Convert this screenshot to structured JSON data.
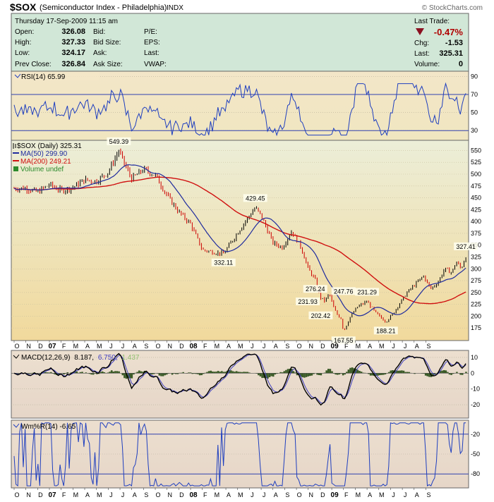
{
  "header": {
    "symbol": "$SOX",
    "name": "(Semiconductor Index - Philadelphia)",
    "exchange": "INDX",
    "watermark": "© StockCharts.com",
    "date": "Thursday  17-Sep-2009  11:15 am",
    "quote_labels": {
      "open": "Open:",
      "high": "High:",
      "low": "Low:",
      "prev": "Prev Close:",
      "bid": "Bid:",
      "bidsize": "Bid Size:",
      "ask": "Ask:",
      "asksize": "Ask Size:",
      "pe": "P/E:",
      "eps": "EPS:",
      "last": "Last:",
      "vwap": "VWAP:",
      "last_trade": "Last Trade:",
      "chg": "Chg:",
      "last2": "Last:",
      "volume": "Volume:"
    },
    "quote_values": {
      "open": "326.08",
      "high": "327.33",
      "low": "324.17",
      "prev": "326.84",
      "pct": "-0.47%",
      "chg": "-1.53",
      "last": "325.31",
      "volume": "0"
    }
  },
  "legends": {
    "rsi": "RSI(14) 65.99",
    "price": "$SOX (Daily) 325.31",
    "ma50": "MA(50) 299.90",
    "ma200": "MA(200) 249.21",
    "volume": "Volume undef",
    "macd_label": "MACD(12,26,9)",
    "macd_v1": "8.187,",
    "macd_v2": "6.750,",
    "macd_v3": "1.437",
    "wpr": "Wm%R(14) -6.65"
  },
  "colors": {
    "up": "#000000",
    "down": "#cc0000",
    "ma50": "#1f2b9e",
    "ma200": "#d01010",
    "rsi_line": "#1f3fbf",
    "macd_line": "#000000",
    "signal_line": "#4040c0",
    "histogram": "#3a5a26",
    "wpr_line": "#1f3fbf",
    "price_bg_top": "#eaedd5",
    "price_bg_bottom": "#f0dca0",
    "indicator_bg": "#e6dbd0",
    "quote_bg": "#cfe6d6"
  },
  "chart_data": {
    "type": "line",
    "x_axis_months": [
      "O",
      "N",
      "D",
      "07",
      "F",
      "M",
      "A",
      "M",
      "J",
      "J",
      "A",
      "S",
      "O",
      "N",
      "D",
      "08",
      "F",
      "M",
      "A",
      "M",
      "J",
      "J",
      "A",
      "S",
      "O",
      "N",
      "D",
      "09",
      "F",
      "M",
      "A",
      "M",
      "J",
      "J",
      "A",
      "S"
    ],
    "price": {
      "ylim": [
        150,
        570
      ],
      "ticks": [
        175,
        200,
        225,
        250,
        275,
        300,
        325,
        350,
        375,
        400,
        425,
        450,
        475,
        500,
        525,
        550
      ],
      "anchors": [
        {
          "month": 0.0,
          "value": 470
        },
        {
          "month": 1.0,
          "value": 470
        },
        {
          "month": 2.0,
          "value": 462
        },
        {
          "month": 3.0,
          "value": 478
        },
        {
          "month": 4.0,
          "value": 465
        },
        {
          "month": 5.0,
          "value": 472
        },
        {
          "month": 6.0,
          "value": 488
        },
        {
          "month": 7.0,
          "value": 485
        },
        {
          "month": 8.0,
          "value": 505
        },
        {
          "month": 8.9,
          "value": 549.39
        },
        {
          "month": 9.5,
          "value": 515
        },
        {
          "month": 10.0,
          "value": 490
        },
        {
          "month": 11.0,
          "value": 510
        },
        {
          "month": 12.0,
          "value": 498
        },
        {
          "month": 13.0,
          "value": 455
        },
        {
          "month": 14.0,
          "value": 420
        },
        {
          "month": 15.0,
          "value": 395
        },
        {
          "month": 16.0,
          "value": 340
        },
        {
          "month": 17.0,
          "value": 335
        },
        {
          "month": 17.8,
          "value": 332.11
        },
        {
          "month": 18.5,
          "value": 358
        },
        {
          "month": 19.5,
          "value": 395
        },
        {
          "month": 20.5,
          "value": 429.45
        },
        {
          "month": 21.0,
          "value": 412
        },
        {
          "month": 22.0,
          "value": 355
        },
        {
          "month": 22.8,
          "value": 345
        },
        {
          "month": 23.6,
          "value": 380
        },
        {
          "month": 24.4,
          "value": 345
        },
        {
          "month": 25.0,
          "value": 300
        },
        {
          "month": 25.6,
          "value": 276.24
        },
        {
          "month": 26.0,
          "value": 240
        },
        {
          "month": 26.4,
          "value": 231.93
        },
        {
          "month": 26.8,
          "value": 247.76
        },
        {
          "month": 27.2,
          "value": 215
        },
        {
          "month": 27.5,
          "value": 202.42
        },
        {
          "month": 27.8,
          "value": 195
        },
        {
          "month": 28.0,
          "value": 167.55
        },
        {
          "month": 28.6,
          "value": 200
        },
        {
          "month": 29.2,
          "value": 220
        },
        {
          "month": 30.0,
          "value": 231.29
        },
        {
          "month": 30.8,
          "value": 205
        },
        {
          "month": 31.6,
          "value": 188.21
        },
        {
          "month": 32.2,
          "value": 205
        },
        {
          "month": 32.8,
          "value": 228
        },
        {
          "month": 33.4,
          "value": 250
        },
        {
          "month": 34.0,
          "value": 265
        },
        {
          "month": 34.8,
          "value": 285
        },
        {
          "month": 35.4,
          "value": 258
        },
        {
          "month": 36.0,
          "value": 270
        },
        {
          "month": 36.6,
          "value": 300
        },
        {
          "month": 37.2,
          "value": 292
        },
        {
          "month": 37.6,
          "value": 315
        },
        {
          "month": 38.0,
          "value": 300
        },
        {
          "month": 38.4,
          "value": 327.41
        }
      ],
      "annotations": [
        {
          "label": "549.39",
          "month": 8.9,
          "value": 549.39,
          "pos": "above"
        },
        {
          "label": "332.11",
          "month": 17.8,
          "value": 332.11,
          "pos": "below"
        },
        {
          "label": "429.45",
          "month": 20.5,
          "value": 429.45,
          "pos": "above"
        },
        {
          "label": "276.24",
          "month": 25.6,
          "value": 276.24,
          "pos": "below"
        },
        {
          "label": "247.76",
          "month": 26.8,
          "value": 247.76,
          "pos": "right"
        },
        {
          "label": "231.93",
          "month": 26.4,
          "value": 231.93,
          "pos": "left"
        },
        {
          "label": "202.42",
          "month": 27.5,
          "value": 202.42,
          "pos": "left"
        },
        {
          "label": "167.55",
          "month": 28.0,
          "value": 167.55,
          "pos": "below"
        },
        {
          "label": "231.29",
          "month": 30.0,
          "value": 231.29,
          "pos": "above"
        },
        {
          "label": "188.21",
          "month": 31.6,
          "value": 188.21,
          "pos": "below"
        },
        {
          "label": "327.41",
          "month": 38.4,
          "value": 327.41,
          "pos": "above"
        }
      ]
    },
    "rsi": {
      "ylim": [
        20,
        95
      ],
      "ticks": [
        30,
        50,
        70,
        90
      ],
      "lines": [
        30,
        70
      ],
      "last": 65.99
    },
    "macd": {
      "ylim": [
        -28,
        14
      ],
      "ticks": [
        10,
        0,
        -10,
        -20
      ],
      "last": [
        8.187,
        6.75,
        1.437
      ]
    },
    "williams_r": {
      "ylim": [
        -100,
        0
      ],
      "ticks": [
        -20,
        -50,
        -80
      ],
      "lines": [
        -20,
        -80
      ],
      "last": -6.65
    }
  }
}
